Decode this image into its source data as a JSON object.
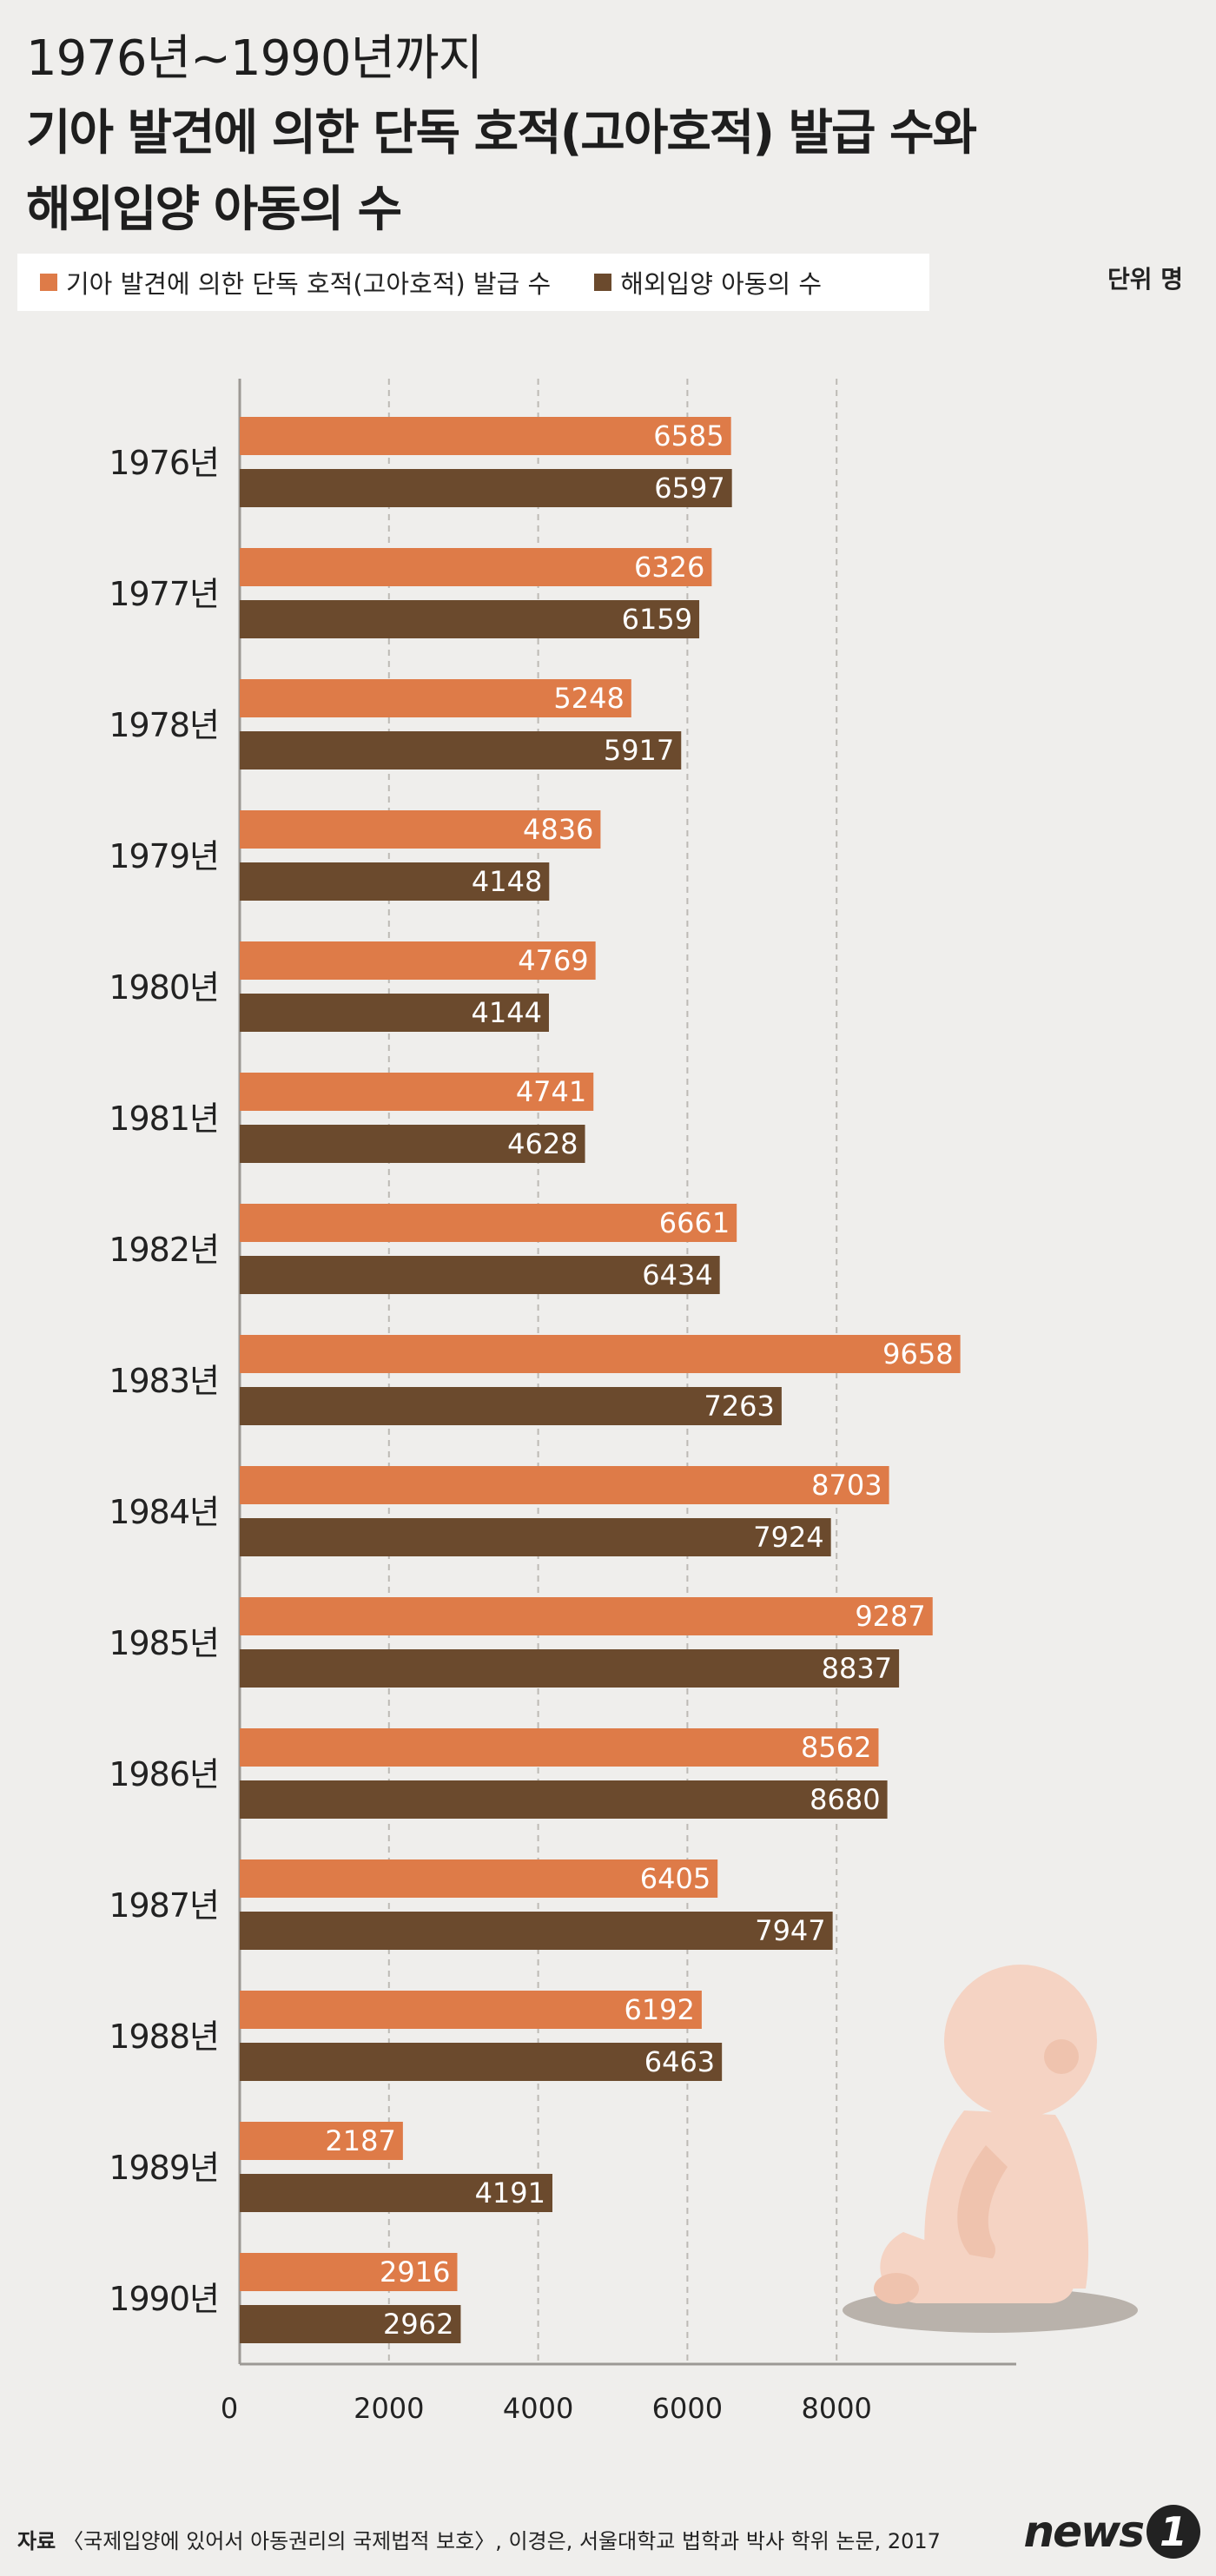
{
  "header": {
    "title_line1": "1976년~1990년까지",
    "title_line2": "기아 발견에 의한 단독 호적(고아호적) 발급 수와",
    "title_line3": "해외입양 아동의 수",
    "unit": "단위 명"
  },
  "colors": {
    "series1": "#de7b48",
    "series2": "#6b4a2d",
    "grid": "#bdbab5",
    "axis": "#9c9995",
    "background": "#efeeec",
    "baby": "#f5d3c3"
  },
  "chart_data": {
    "type": "bar",
    "orientation": "horizontal",
    "title": "1976년~1990년까지 기아 발견에 의한 단독 호적(고아호적) 발급 수와 해외입양 아동의 수",
    "unit": "단위 명",
    "categories": [
      "1976년",
      "1977년",
      "1978년",
      "1979년",
      "1980년",
      "1981년",
      "1982년",
      "1983년",
      "1984년",
      "1985년",
      "1986년",
      "1987년",
      "1988년",
      "1989년",
      "1990년"
    ],
    "series": [
      {
        "name": "기아 발견에 의한 단독 호적(고아호적) 발급 수",
        "values": [
          6585,
          6326,
          5248,
          4836,
          4769,
          4741,
          6661,
          9658,
          8703,
          9287,
          8562,
          6405,
          6192,
          2187,
          2916
        ]
      },
      {
        "name": "해외입양 아동의 수",
        "values": [
          6597,
          6159,
          5917,
          4148,
          4144,
          4628,
          6434,
          7263,
          7924,
          8837,
          8680,
          7947,
          6463,
          4191,
          2962
        ]
      }
    ],
    "xlim": [
      0,
      10000
    ],
    "xticks": [
      0,
      2000,
      4000,
      6000,
      8000
    ],
    "grid": true,
    "legend": "top-left"
  },
  "footer": {
    "source_label": "자료",
    "source_text": "〈국제입양에 있어서 아동권리의 국제법적 보호〉, 이경은, 서울대학교 법학과 박사 학위 논문, 2017",
    "logo_text": "news",
    "logo_number": "1"
  }
}
